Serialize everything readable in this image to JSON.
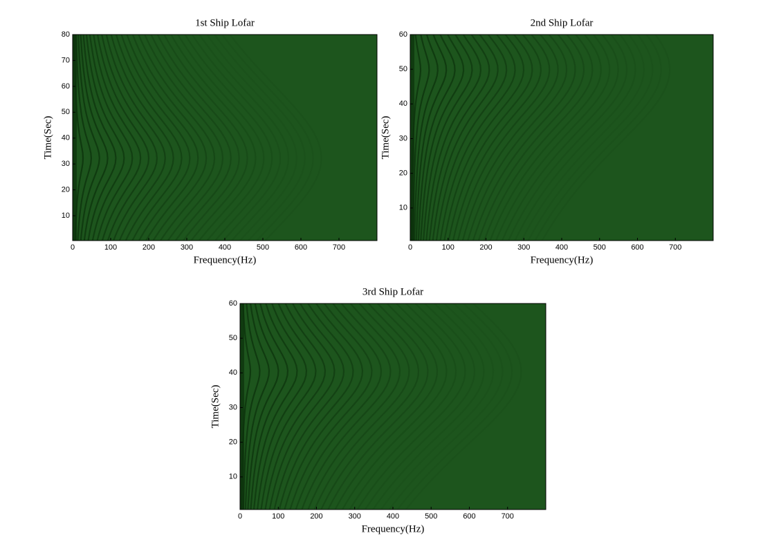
{
  "chart_data": [
    {
      "type": "spectrogram",
      "title": "1st Ship Lofar",
      "xlabel": "Frequency(Hz)",
      "ylabel": "Time(Sec)",
      "xlim": [
        0,
        800
      ],
      "xticks": [
        0,
        100,
        200,
        300,
        400,
        500,
        600,
        700
      ],
      "ylim": [
        0.4,
        80
      ],
      "yticks": [
        10,
        20,
        30,
        40,
        50,
        60,
        70,
        80
      ],
      "color": "#1d551d"
    },
    {
      "type": "spectrogram",
      "title": "2nd Ship Lofar",
      "xlabel": "Frequency(Hz)",
      "ylabel": "Time(Sec)",
      "xlim": [
        0,
        800
      ],
      "xticks": [
        0,
        100,
        200,
        300,
        400,
        500,
        600,
        700
      ],
      "ylim": [
        0.6,
        60
      ],
      "yticks": [
        10,
        20,
        30,
        40,
        50,
        60
      ],
      "color": "#1d551d"
    },
    {
      "type": "spectrogram",
      "title": "3rd Ship Lofar",
      "xlabel": "Frequency(Hz)",
      "ylabel": "Time(Sec)",
      "xlim": [
        0,
        800
      ],
      "xticks": [
        0,
        100,
        200,
        300,
        400,
        500,
        600,
        700
      ],
      "ylim": [
        0.6,
        60
      ],
      "yticks": [
        10,
        20,
        30,
        40,
        50,
        60
      ],
      "color": "#1d551d"
    }
  ]
}
